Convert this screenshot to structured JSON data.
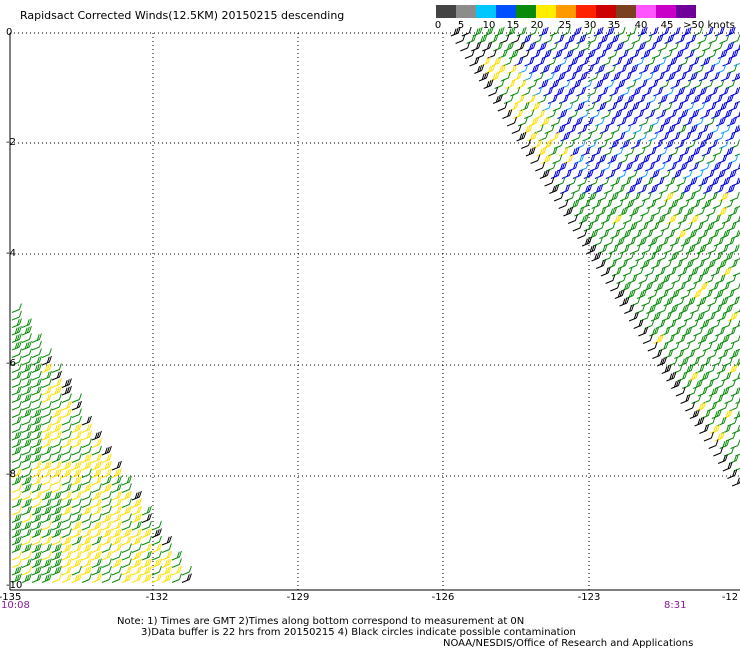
{
  "title": "Rapidsact Corrected Winds(12.5KM) 20150215 descending",
  "legend": {
    "colors": [
      "#444444",
      "#8c8c8c",
      "#00c8ff",
      "#0050ff",
      "#0a8c0a",
      "#ffee00",
      "#ff9900",
      "#ff2200",
      "#cc0000",
      "#7a4020",
      "#ff55ff",
      "#c800c8",
      "#70009a"
    ],
    "labels": [
      "0",
      "5",
      "10",
      "15",
      "20",
      "25",
      "30",
      "35",
      "40",
      "45",
      ">50 knots"
    ]
  },
  "axes": {
    "x_ticks": [
      "-135",
      "-132",
      "-129",
      "-126",
      "-123",
      "-12"
    ],
    "y_ticks": [
      "0",
      "-2",
      "-4",
      "-6",
      "-8",
      "-10"
    ]
  },
  "times": {
    "left": "10:08",
    "right": "8:31"
  },
  "notes": {
    "line1": "Note: 1) Times are GMT 2)Times along bottom correspond to measurement at 0N",
    "line2": "3)Data buffer is 22 hrs from 20150215 4) Black circles indicate possible contamination",
    "line3": "NOAA/NESDIS/Office of Research and Applications"
  },
  "wind_colors": {
    "black": "#000000",
    "blue": "#0000e0",
    "light_blue": "#1aa0ff",
    "green": "#0a8c0a",
    "yellow": "#ffe000"
  }
}
